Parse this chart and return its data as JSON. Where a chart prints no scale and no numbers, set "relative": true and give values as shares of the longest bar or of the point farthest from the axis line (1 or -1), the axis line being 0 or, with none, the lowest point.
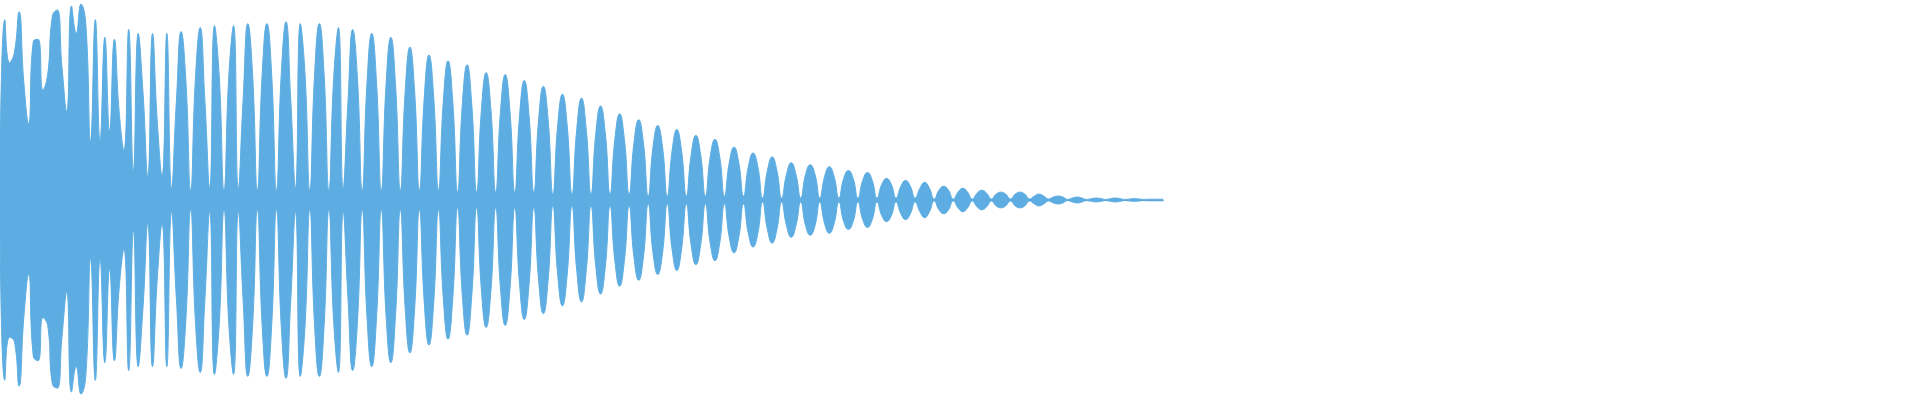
{
  "chart_data": {
    "type": "area",
    "relative": true,
    "tick_labels": false,
    "categories": [
      null,
      null,
      null,
      null,
      null,
      null,
      null,
      null,
      null,
      null,
      null,
      null,
      null,
      null,
      null,
      null,
      null,
      null,
      null,
      null,
      null,
      null,
      null,
      null,
      null,
      null,
      null,
      null,
      null,
      null,
      null,
      null,
      null,
      null,
      null,
      null,
      null,
      null,
      null,
      null,
      null,
      null,
      null,
      null,
      null,
      null,
      null,
      null,
      null,
      null,
      null,
      null,
      null,
      null,
      null,
      null,
      null,
      null,
      null,
      null,
      null,
      null,
      null,
      null,
      null,
      null,
      null,
      null,
      null,
      null,
      null,
      null,
      null,
      null,
      null,
      null,
      null,
      null,
      null,
      null,
      null,
      null,
      null,
      null,
      null,
      null,
      null,
      null,
      null,
      null,
      null,
      null,
      null,
      null,
      null,
      null,
      null,
      null,
      null,
      null,
      null,
      null,
      null,
      null,
      null,
      null,
      null,
      null,
      null,
      null,
      null,
      null,
      null,
      null,
      null,
      null,
      null,
      null,
      null,
      null,
      null,
      null,
      null,
      null,
      null,
      null,
      null,
      null,
      null,
      null,
      null,
      null,
      null,
      null,
      null,
      null,
      null,
      null,
      null,
      null,
      null,
      null,
      null,
      null,
      null,
      null,
      null,
      null,
      null,
      null,
      null,
      null,
      null,
      null,
      null,
      null,
      null,
      null,
      null,
      null,
      null,
      null,
      null,
      null,
      null,
      null,
      null,
      null,
      null,
      null,
      null,
      null,
      null,
      null,
      null,
      null,
      null,
      null,
      null,
      null,
      null,
      null,
      null,
      null,
      null,
      null,
      null,
      null,
      null,
      null,
      null,
      null,
      null,
      null,
      null,
      null,
      null,
      null,
      null,
      null,
      null,
      null,
      null,
      null,
      null,
      null,
      null,
      null,
      null,
      null,
      null,
      null,
      null,
      null,
      null,
      null,
      null,
      null,
      null,
      null,
      null,
      null,
      null,
      null,
      null,
      null,
      null,
      null,
      null,
      null,
      null,
      null,
      null,
      null,
      null,
      null,
      null,
      null,
      null,
      null,
      null,
      null,
      null,
      null,
      null
    ],
    "series": [
      {
        "color": "#5dade2",
        "values": [
          0.1,
          0.92,
          0.7,
          0.75,
          0.96,
          0.6,
          0.39,
          0.81,
          0.82,
          0.56,
          0.64,
          0.94,
          0.97,
          0.68,
          0.45,
          0.99,
          0.85,
          1.0,
          0.9,
          0.3,
          0.92,
          0.3,
          0.83,
          0.35,
          0.82,
          0.45,
          0.25,
          0.87,
          0.15,
          0.85,
          0.55,
          0.12,
          0.85,
          0.4,
          0.12,
          0.85,
          0.06,
          0.5,
          0.86,
          0.61,
          0.05,
          0.62,
          0.88,
          0.5,
          0.06,
          0.89,
          0.63,
          0.05,
          0.63,
          0.89,
          0.06,
          0.51,
          0.9,
          0.64,
          0.05,
          0.64,
          0.9,
          0.64,
          0.05,
          0.64,
          0.91,
          0.51,
          0.06,
          0.9,
          0.64,
          0.05,
          0.64,
          0.9,
          0.64,
          0.05,
          0.62,
          0.88,
          0.06,
          0.5,
          0.87,
          0.62,
          0.05,
          0.6,
          0.85,
          0.6,
          0.05,
          0.59,
          0.83,
          0.58,
          0.05,
          0.55,
          0.78,
          0.55,
          0.05,
          0.52,
          0.74,
          0.52,
          0.05,
          0.5,
          0.71,
          0.5,
          0.04,
          0.49,
          0.69,
          0.48,
          0.04,
          0.46,
          0.65,
          0.46,
          0.04,
          0.45,
          0.64,
          0.45,
          0.04,
          0.43,
          0.61,
          0.43,
          0.04,
          0.41,
          0.58,
          0.41,
          0.03,
          0.38,
          0.54,
          0.38,
          0.03,
          0.36,
          0.52,
          0.36,
          0.03,
          0.34,
          0.48,
          0.34,
          0.03,
          0.31,
          0.44,
          0.31,
          0.03,
          0.29,
          0.41,
          0.29,
          0.02,
          0.27,
          0.38,
          0.27,
          0.02,
          0.25,
          0.36,
          0.25,
          0.02,
          0.23,
          0.33,
          0.23,
          0.02,
          0.22,
          0.31,
          0.22,
          0.02,
          0.19,
          0.27,
          0.19,
          0.02,
          0.17,
          0.24,
          0.17,
          0.01,
          0.15,
          0.22,
          0.15,
          0.01,
          0.13,
          0.19,
          0.13,
          0.01,
          0.13,
          0.18,
          0.13,
          0.01,
          0.12,
          0.17,
          0.12,
          0.01,
          0.11,
          0.15,
          0.11,
          0.01,
          0.1,
          0.14,
          0.1,
          0.01,
          0.08,
          0.11,
          0.08,
          0.01,
          0.07,
          0.1,
          0.07,
          0.01,
          0.06,
          0.09,
          0.06,
          0.005,
          0.05,
          0.07,
          0.05,
          0.005,
          0.04,
          0.06,
          0.04,
          0.005,
          0.035,
          0.05,
          0.035,
          0.005,
          0.03,
          0.04,
          0.03,
          0.005,
          0.03,
          0.04,
          0.03,
          0.005,
          0.02,
          0.03,
          0.02,
          0.005,
          0.015,
          0.02,
          0.015,
          0.003,
          0.01,
          0.015,
          0.01,
          0.003,
          0.007,
          0.01,
          0.007,
          0.003,
          0.007,
          0.01,
          0.007,
          0.003,
          0.005,
          0.007,
          0.005,
          0.003,
          0.004,
          0.004,
          0.004,
          0.004
        ]
      },
      {
        "color": "#5dade2",
        "values": [
          -0.1,
          -0.92,
          -0.7,
          -0.72,
          -0.95,
          -0.6,
          -0.38,
          -0.8,
          -0.82,
          -0.6,
          -0.64,
          -0.94,
          -0.96,
          -0.7,
          -0.47,
          -0.98,
          -0.85,
          -0.99,
          -0.9,
          -0.3,
          -0.92,
          -0.3,
          -0.83,
          -0.35,
          -0.82,
          -0.45,
          -0.25,
          -0.87,
          -0.15,
          -0.85,
          -0.55,
          -0.12,
          -0.85,
          -0.4,
          -0.12,
          -0.85,
          -0.06,
          -0.5,
          -0.86,
          -0.61,
          -0.05,
          -0.62,
          -0.88,
          -0.5,
          -0.06,
          -0.89,
          -0.63,
          -0.05,
          -0.63,
          -0.89,
          -0.06,
          -0.51,
          -0.9,
          -0.64,
          -0.05,
          -0.64,
          -0.9,
          -0.64,
          -0.05,
          -0.64,
          -0.91,
          -0.51,
          -0.06,
          -0.9,
          -0.64,
          -0.05,
          -0.64,
          -0.9,
          -0.64,
          -0.05,
          -0.62,
          -0.88,
          -0.06,
          -0.5,
          -0.87,
          -0.62,
          -0.05,
          -0.6,
          -0.85,
          -0.6,
          -0.05,
          -0.59,
          -0.83,
          -0.58,
          -0.05,
          -0.55,
          -0.78,
          -0.55,
          -0.05,
          -0.52,
          -0.74,
          -0.52,
          -0.05,
          -0.5,
          -0.71,
          -0.5,
          -0.04,
          -0.49,
          -0.69,
          -0.48,
          -0.04,
          -0.46,
          -0.65,
          -0.46,
          -0.04,
          -0.45,
          -0.64,
          -0.45,
          -0.04,
          -0.43,
          -0.61,
          -0.43,
          -0.04,
          -0.41,
          -0.58,
          -0.41,
          -0.03,
          -0.38,
          -0.54,
          -0.38,
          -0.03,
          -0.36,
          -0.52,
          -0.36,
          -0.03,
          -0.34,
          -0.48,
          -0.34,
          -0.03,
          -0.31,
          -0.44,
          -0.31,
          -0.03,
          -0.29,
          -0.41,
          -0.29,
          -0.02,
          -0.27,
          -0.38,
          -0.27,
          -0.02,
          -0.25,
          -0.36,
          -0.25,
          -0.02,
          -0.23,
          -0.33,
          -0.23,
          -0.02,
          -0.22,
          -0.31,
          -0.22,
          -0.02,
          -0.19,
          -0.27,
          -0.19,
          -0.02,
          -0.17,
          -0.24,
          -0.17,
          -0.01,
          -0.15,
          -0.22,
          -0.15,
          -0.01,
          -0.13,
          -0.19,
          -0.13,
          -0.01,
          -0.13,
          -0.18,
          -0.13,
          -0.01,
          -0.12,
          -0.17,
          -0.12,
          -0.01,
          -0.11,
          -0.15,
          -0.11,
          -0.01,
          -0.1,
          -0.14,
          -0.1,
          -0.01,
          -0.08,
          -0.11,
          -0.08,
          -0.01,
          -0.07,
          -0.1,
          -0.07,
          -0.01,
          -0.06,
          -0.09,
          -0.06,
          -0.005,
          -0.05,
          -0.07,
          -0.05,
          -0.005,
          -0.04,
          -0.06,
          -0.04,
          -0.005,
          -0.035,
          -0.05,
          -0.035,
          -0.005,
          -0.03,
          -0.04,
          -0.03,
          -0.005,
          -0.03,
          -0.04,
          -0.03,
          -0.005,
          -0.02,
          -0.03,
          -0.02,
          -0.005,
          -0.015,
          -0.02,
          -0.015,
          -0.003,
          -0.01,
          -0.015,
          -0.01,
          -0.003,
          -0.007,
          -0.01,
          -0.007,
          -0.003,
          -0.007,
          -0.01,
          -0.007,
          -0.003,
          -0.005,
          -0.007,
          -0.005,
          -0.003,
          -0.004,
          -0.004,
          -0.004,
          -0.004
        ]
      }
    ]
  }
}
